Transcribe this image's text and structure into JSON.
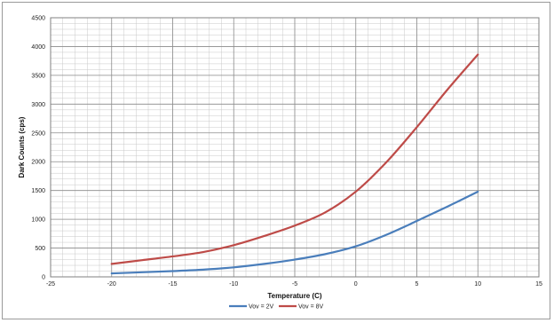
{
  "chart_data": {
    "type": "line",
    "title": "",
    "xlabel": "Temperature (C)",
    "ylabel": "Dark Counts (cps)",
    "xlim": [
      -25,
      15
    ],
    "ylim": [
      0,
      4500
    ],
    "xticks": [
      -25,
      -20,
      -15,
      -10,
      -5,
      0,
      5,
      10,
      15
    ],
    "yticks": [
      0,
      500,
      1000,
      1500,
      2000,
      2500,
      3000,
      3500,
      4000,
      4500
    ],
    "grid": true,
    "legend_position": "bottom",
    "series": [
      {
        "name": "Vov = 2V",
        "color": "#4a7ebb",
        "x": [
          -20,
          -17.5,
          -15,
          -12.5,
          -10,
          -7.5,
          -5,
          -2.5,
          0,
          2.5,
          5,
          7.5,
          10
        ],
        "y": [
          60,
          80,
          100,
          125,
          165,
          225,
          300,
          395,
          530,
          730,
          970,
          1220,
          1480
        ]
      },
      {
        "name": "Vov = 8V",
        "color": "#be4b48",
        "x": [
          -20,
          -17.5,
          -15,
          -12.5,
          -10,
          -7.5,
          -5,
          -2.5,
          0,
          2.5,
          5,
          7.5,
          10
        ],
        "y": [
          225,
          290,
          355,
          430,
          550,
          710,
          890,
          1120,
          1480,
          1990,
          2600,
          3250,
          3860
        ]
      }
    ]
  }
}
